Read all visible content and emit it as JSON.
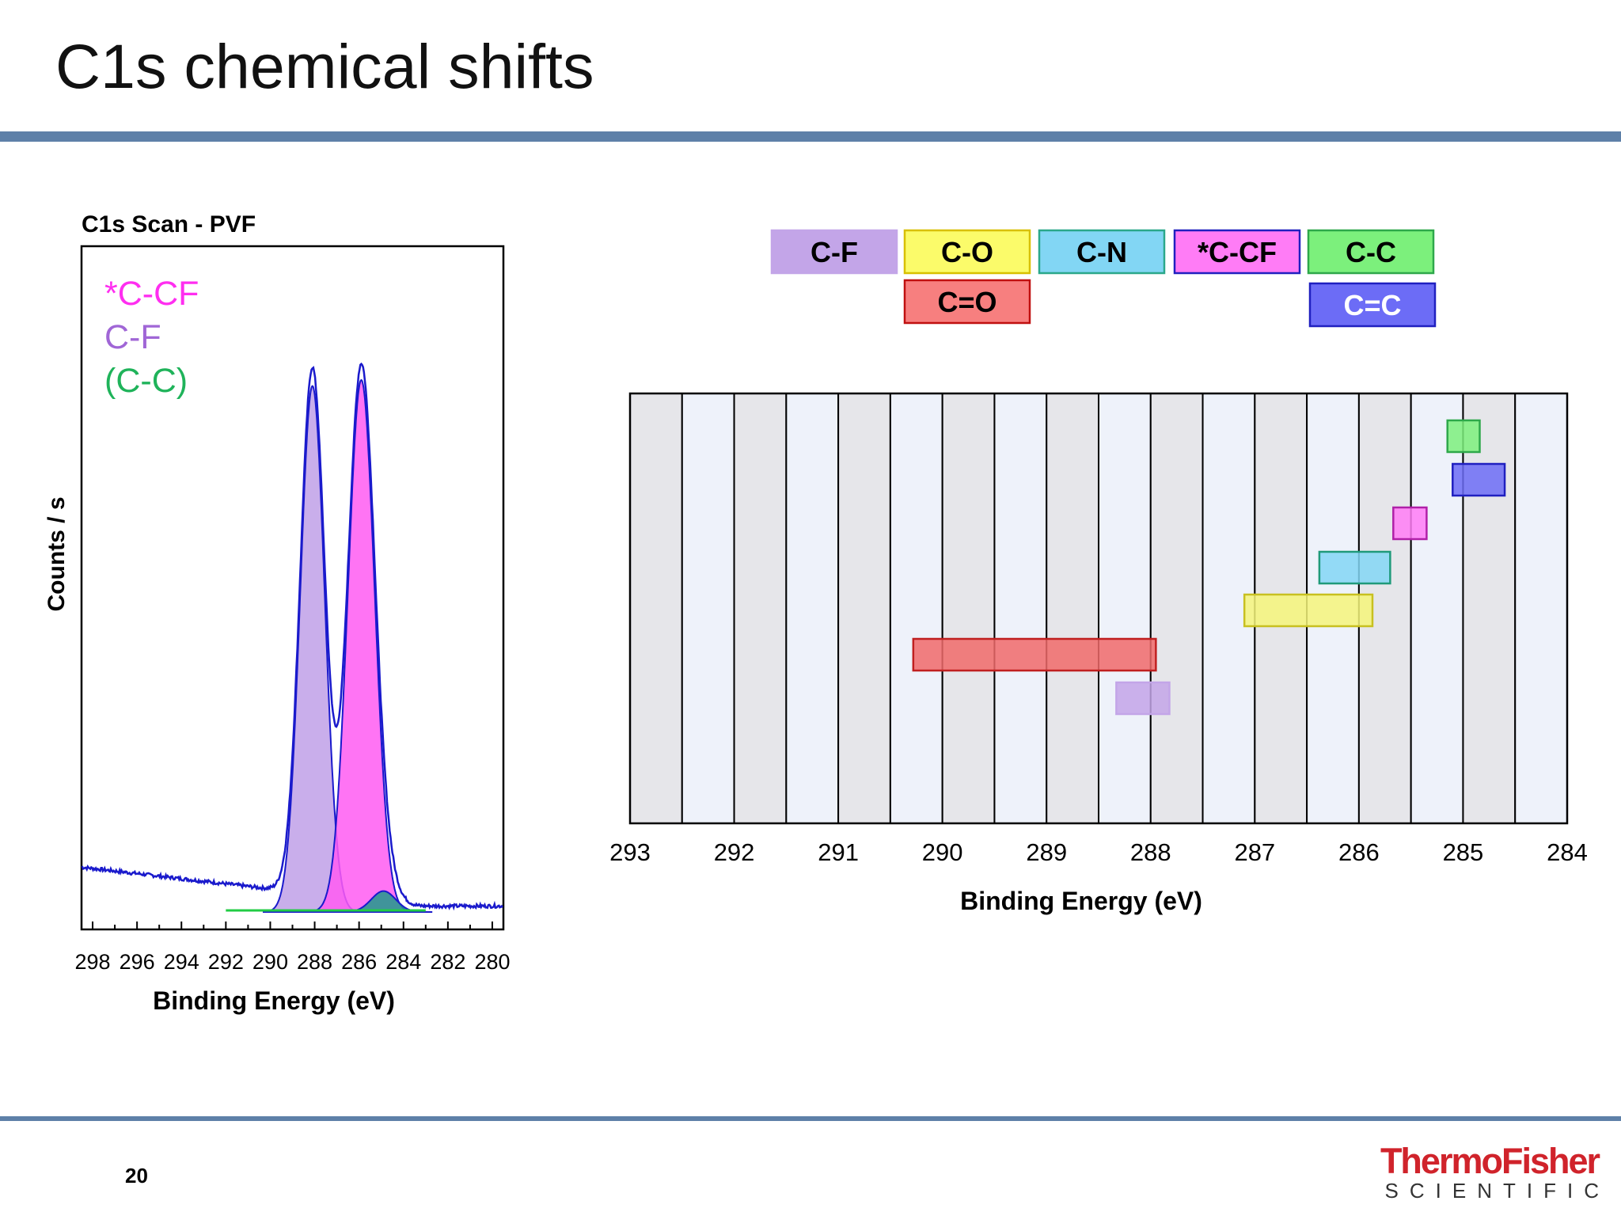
{
  "slide": {
    "title": "C1s chemical shifts",
    "page_number": "20"
  },
  "brand": {
    "line1": "ThermoFisher",
    "line2": "SCIENTIFIC"
  },
  "chart_data": [
    {
      "type": "line",
      "title": "C1s Scan - PVF",
      "xlabel": "Binding Energy (eV)",
      "ylabel": "Counts / s",
      "x_reversed": true,
      "xlim": [
        298.5,
        279.5
      ],
      "x_ticks": [
        298,
        296,
        294,
        292,
        290,
        288,
        286,
        284,
        282,
        280
      ],
      "y_tick_labels": false,
      "legend": [
        {
          "label": "*C-CF",
          "color": "#ff2ef0"
        },
        {
          "label": "C-F",
          "color": "#a066d6"
        },
        {
          "label": "(C-C)",
          "color": "#1fb35a"
        }
      ],
      "series": [
        {
          "name": "C-F",
          "kind": "component",
          "fill": "#c0a0e8",
          "peak_center": 288.1,
          "peak_height": 0.88,
          "peak_width": 0.55
        },
        {
          "name": "*C-CF",
          "kind": "component",
          "fill": "#ff5cf2",
          "peak_center": 285.9,
          "peak_height": 0.89,
          "peak_width": 0.6
        },
        {
          "name": "(C-C)",
          "kind": "component",
          "fill": "#1e9a8a",
          "peak_center": 284.9,
          "peak_height": 0.035,
          "peak_width": 0.55
        },
        {
          "name": "envelope",
          "kind": "envelope",
          "stroke": "#1a1acc",
          "baseline_left": 0.065,
          "baseline_right": 0.0
        }
      ]
    },
    {
      "type": "bar",
      "orientation": "horizontal-range",
      "xlabel": "Binding Energy (eV)",
      "x_reversed": true,
      "xlim": [
        293,
        284
      ],
      "x_ticks": [
        293,
        292,
        291,
        290,
        289,
        288,
        287,
        286,
        285,
        284
      ],
      "grid": "vertical bands",
      "legend_placement": "top",
      "legend": [
        {
          "label": "C-F",
          "color": "#c3a5e8"
        },
        {
          "label": "C-O",
          "color": "#fbfb6a"
        },
        {
          "label": "C-N",
          "color": "#82d6f4"
        },
        {
          "label": "*C-CF",
          "color": "#ff7cf6"
        },
        {
          "label": "C-C",
          "color": "#7cf07c"
        },
        {
          "label": "C=O",
          "color": "#f77f7f"
        },
        {
          "label": "C=C",
          "color": "#6c6cf6"
        }
      ],
      "ranges": [
        {
          "label": "C-C",
          "min": 284.84,
          "max": 285.15,
          "color": "#7cf07c",
          "border": "#2ea84a"
        },
        {
          "label": "C=C",
          "min": 284.6,
          "max": 285.1,
          "color": "#6c6cf6",
          "border": "#2020c0"
        },
        {
          "label": "*C-CF",
          "min": 285.35,
          "max": 285.67,
          "color": "#ff7cf6",
          "border": "#b020a8"
        },
        {
          "label": "C-N",
          "min": 285.7,
          "max": 286.38,
          "color": "#82d6f4",
          "border": "#1f9a7a"
        },
        {
          "label": "C-O",
          "min": 285.87,
          "max": 287.1,
          "color": "#f5f57a",
          "border": "#c8c020"
        },
        {
          "label": "C=O",
          "min": 287.95,
          "max": 290.28,
          "color": "#f06a6a",
          "border": "#c02020"
        },
        {
          "label": "C-F",
          "min": 287.82,
          "max": 288.33,
          "color": "#c3a5e8",
          "border": "#c3a5e8"
        }
      ]
    }
  ]
}
